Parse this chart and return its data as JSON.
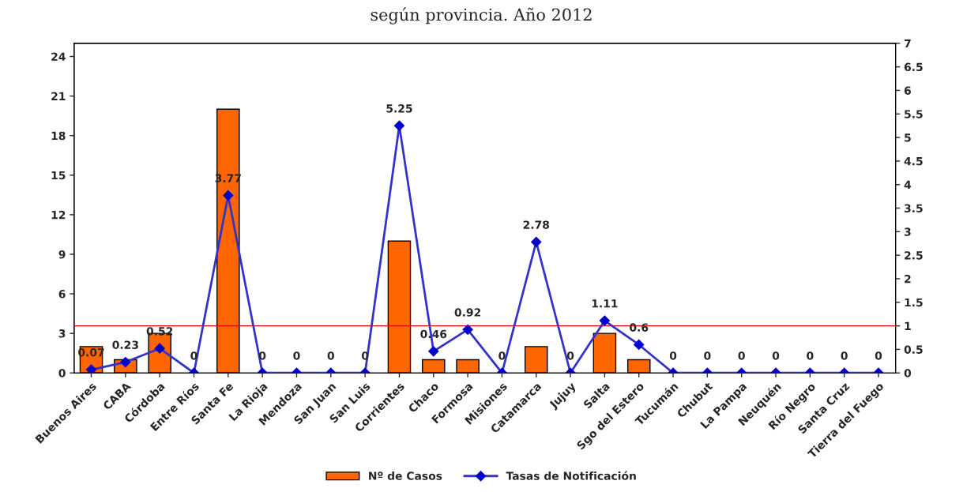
{
  "chart_data": {
    "type": "bar",
    "title": "según provincia. Año 2012",
    "categories": [
      "Buenos Aires",
      "CABA",
      "Córdoba",
      "Entre Ríos",
      "Santa Fe",
      "La Rioja",
      "Mendoza",
      "San Juan",
      "San Luis",
      "Corrientes",
      "Chaco",
      "Formosa",
      "Misiones",
      "Catamarca",
      "Jujuy",
      "Salta",
      "Sgo del Estero",
      "Tucumán",
      "Chubut",
      "La Pampa",
      "Neuquén",
      "Río Negro",
      "Santa Cruz",
      "Tierra del Fuego"
    ],
    "series": [
      {
        "name": "Nº de Casos",
        "color": "#ff6600",
        "values": [
          2,
          1,
          3,
          0,
          20,
          0,
          0,
          0,
          0,
          10,
          1,
          1,
          0,
          2,
          0,
          3,
          1,
          0,
          0,
          0,
          0,
          0,
          0,
          0
        ]
      },
      {
        "name": "Tasas de Notificación",
        "type": "line",
        "axis": "y2",
        "color": "#3333cc",
        "marker": "diamond",
        "values": [
          0.07,
          0.23,
          0.52,
          0,
          3.77,
          0,
          0,
          0,
          0,
          5.25,
          0.46,
          0.92,
          0,
          2.78,
          0,
          1.11,
          0.6,
          0,
          0,
          0,
          0,
          0,
          0,
          0
        ],
        "value_labels": [
          "0.07",
          "0.23",
          "0.52",
          "0",
          "3.77",
          "0",
          "0",
          "0",
          "0",
          "5.25",
          "0.46",
          "0.92",
          "0",
          "2.78",
          "0",
          "1.11",
          "0.6",
          "0",
          "0",
          "0",
          "0",
          "0",
          "0",
          "0"
        ]
      }
    ],
    "ylim": [
      0,
      25
    ],
    "yticks": [
      0,
      3,
      6,
      9,
      12,
      15,
      18,
      21,
      24
    ],
    "y2lim": [
      0,
      7
    ],
    "y2ticks": [
      0,
      0.5,
      1,
      1.5,
      2,
      2.5,
      3,
      3.5,
      4,
      4.5,
      5,
      5.5,
      6,
      6.5,
      7
    ],
    "ref_lines": [
      {
        "axis": "y2",
        "value": 1,
        "color": "#dd0000"
      }
    ],
    "grid": false,
    "legend": "bottom"
  }
}
